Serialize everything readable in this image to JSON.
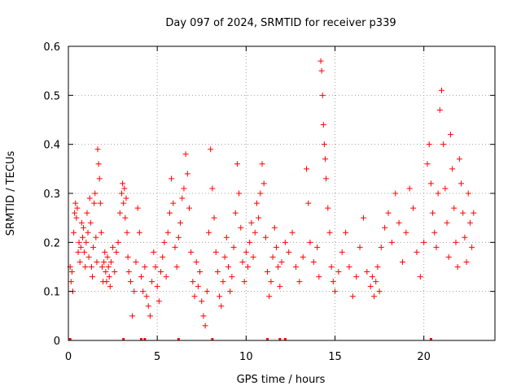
{
  "chart_data": {
    "type": "scatter",
    "title": "Day 097 of 2024, SRMTID for receiver p339",
    "xlabel": "GPS time / hours",
    "ylabel": "SRMTID / TECUs",
    "xlim": [
      0,
      24
    ],
    "ylim": [
      0,
      0.6
    ],
    "xticks": [
      0,
      5,
      10,
      15,
      20
    ],
    "yticks": [
      0,
      0.1,
      0.2,
      0.3,
      0.4,
      0.5,
      0.6
    ],
    "xtick_labels": [
      "0",
      "5",
      "10",
      "15",
      "20"
    ],
    "ytick_labels": [
      "0",
      "0.1",
      "0.2",
      "0.3",
      "0.4",
      "0.5",
      "0.6"
    ],
    "grid": true,
    "marker": "+",
    "color": "#ff0000",
    "series": [
      {
        "name": "SRMTID",
        "points": [
          [
            0.1,
            0.15
          ],
          [
            0.15,
            0.12
          ],
          [
            0.2,
            0.14
          ],
          [
            0.25,
            0.1
          ],
          [
            0.3,
            0.22
          ],
          [
            0.35,
            0.26
          ],
          [
            0.4,
            0.28
          ],
          [
            0.45,
            0.25
          ],
          [
            0.5,
            0.27
          ],
          [
            0.55,
            0.18
          ],
          [
            0.6,
            0.2
          ],
          [
            0.65,
            0.16
          ],
          [
            0.7,
            0.19
          ],
          [
            0.75,
            0.24
          ],
          [
            0.8,
            0.21
          ],
          [
            0.85,
            0.23
          ],
          [
            0.9,
            0.18
          ],
          [
            0.95,
            0.15
          ],
          [
            1.0,
            0.2
          ],
          [
            1.05,
            0.26
          ],
          [
            1.1,
            0.22
          ],
          [
            1.15,
            0.17
          ],
          [
            1.2,
            0.29
          ],
          [
            1.25,
            0.24
          ],
          [
            1.3,
            0.15
          ],
          [
            1.35,
            0.13
          ],
          [
            1.4,
            0.19
          ],
          [
            1.45,
            0.28
          ],
          [
            1.5,
            0.3
          ],
          [
            1.55,
            0.21
          ],
          [
            1.6,
            0.16
          ],
          [
            1.65,
            0.39
          ],
          [
            1.7,
            0.36
          ],
          [
            1.75,
            0.33
          ],
          [
            1.8,
            0.28
          ],
          [
            1.85,
            0.22
          ],
          [
            1.9,
            0.15
          ],
          [
            1.95,
            0.12
          ],
          [
            2.0,
            0.16
          ],
          [
            2.05,
            0.18
          ],
          [
            2.1,
            0.14
          ],
          [
            2.15,
            0.12
          ],
          [
            2.2,
            0.17
          ],
          [
            2.25,
            0.15
          ],
          [
            2.3,
            0.13
          ],
          [
            2.35,
            0.11
          ],
          [
            2.4,
            0.16
          ],
          [
            2.5,
            0.19
          ],
          [
            2.6,
            0.14
          ],
          [
            2.7,
            0.18
          ],
          [
            2.8,
            0.2
          ],
          [
            2.9,
            0.26
          ],
          [
            3.0,
            0.3
          ],
          [
            3.05,
            0.32
          ],
          [
            3.1,
            0.28
          ],
          [
            3.15,
            0.31
          ],
          [
            3.2,
            0.25
          ],
          [
            3.25,
            0.29
          ],
          [
            3.3,
            0.22
          ],
          [
            3.35,
            0.17
          ],
          [
            3.4,
            0.14
          ],
          [
            3.5,
            0.12
          ],
          [
            3.6,
            0.05
          ],
          [
            3.7,
            0.1
          ],
          [
            3.8,
            0.16
          ],
          [
            3.9,
            0.27
          ],
          [
            4.0,
            0.22
          ],
          [
            4.1,
            0.13
          ],
          [
            4.2,
            0.1
          ],
          [
            4.3,
            0.15
          ],
          [
            4.4,
            0.09
          ],
          [
            4.5,
            0.07
          ],
          [
            4.6,
            0.05
          ],
          [
            4.7,
            0.12
          ],
          [
            4.8,
            0.18
          ],
          [
            4.9,
            0.15
          ],
          [
            5.0,
            0.11
          ],
          [
            5.1,
            0.08
          ],
          [
            5.2,
            0.14
          ],
          [
            5.3,
            0.17
          ],
          [
            5.4,
            0.2
          ],
          [
            5.5,
            0.13
          ],
          [
            5.6,
            0.22
          ],
          [
            5.7,
            0.26
          ],
          [
            5.8,
            0.33
          ],
          [
            5.9,
            0.28
          ],
          [
            6.0,
            0.19
          ],
          [
            6.1,
            0.15
          ],
          [
            6.2,
            0.21
          ],
          [
            6.3,
            0.24
          ],
          [
            6.4,
            0.29
          ],
          [
            6.5,
            0.31
          ],
          [
            6.6,
            0.38
          ],
          [
            6.7,
            0.34
          ],
          [
            6.8,
            0.27
          ],
          [
            6.9,
            0.18
          ],
          [
            7.0,
            0.12
          ],
          [
            7.1,
            0.09
          ],
          [
            7.2,
            0.16
          ],
          [
            7.3,
            0.11
          ],
          [
            7.4,
            0.14
          ],
          [
            7.5,
            0.08
          ],
          [
            7.6,
            0.05
          ],
          [
            7.7,
            0.03
          ],
          [
            7.8,
            0.1
          ],
          [
            7.9,
            0.22
          ],
          [
            8.0,
            0.39
          ],
          [
            8.1,
            0.31
          ],
          [
            8.2,
            0.25
          ],
          [
            8.3,
            0.18
          ],
          [
            8.4,
            0.14
          ],
          [
            8.5,
            0.09
          ],
          [
            8.6,
            0.07
          ],
          [
            8.7,
            0.12
          ],
          [
            8.8,
            0.17
          ],
          [
            8.9,
            0.21
          ],
          [
            9.0,
            0.15
          ],
          [
            9.1,
            0.1
          ],
          [
            9.2,
            0.13
          ],
          [
            9.3,
            0.19
          ],
          [
            9.4,
            0.26
          ],
          [
            9.5,
            0.36
          ],
          [
            9.6,
            0.3
          ],
          [
            9.7,
            0.23
          ],
          [
            9.8,
            0.16
          ],
          [
            9.9,
            0.12
          ],
          [
            10.0,
            0.18
          ],
          [
            10.1,
            0.15
          ],
          [
            10.2,
            0.2
          ],
          [
            10.3,
            0.24
          ],
          [
            10.4,
            0.17
          ],
          [
            10.5,
            0.22
          ],
          [
            10.6,
            0.28
          ],
          [
            10.7,
            0.25
          ],
          [
            10.8,
            0.3
          ],
          [
            10.9,
            0.36
          ],
          [
            11.0,
            0.32
          ],
          [
            11.1,
            0.21
          ],
          [
            11.2,
            0.14
          ],
          [
            11.3,
            0.09
          ],
          [
            11.4,
            0.12
          ],
          [
            11.5,
            0.17
          ],
          [
            11.6,
            0.23
          ],
          [
            11.7,
            0.19
          ],
          [
            11.8,
            0.15
          ],
          [
            11.9,
            0.11
          ],
          [
            12.0,
            0.16
          ],
          [
            12.2,
            0.2
          ],
          [
            12.4,
            0.18
          ],
          [
            12.6,
            0.22
          ],
          [
            12.8,
            0.15
          ],
          [
            13.0,
            0.12
          ],
          [
            13.2,
            0.17
          ],
          [
            13.4,
            0.35
          ],
          [
            13.5,
            0.28
          ],
          [
            13.6,
            0.2
          ],
          [
            13.8,
            0.16
          ],
          [
            14.0,
            0.19
          ],
          [
            14.1,
            0.13
          ],
          [
            14.2,
            0.57
          ],
          [
            14.25,
            0.55
          ],
          [
            14.3,
            0.5
          ],
          [
            14.35,
            0.44
          ],
          [
            14.4,
            0.4
          ],
          [
            14.45,
            0.37
          ],
          [
            14.5,
            0.33
          ],
          [
            14.6,
            0.27
          ],
          [
            14.7,
            0.22
          ],
          [
            14.8,
            0.15
          ],
          [
            14.9,
            0.12
          ],
          [
            15.0,
            0.1
          ],
          [
            15.2,
            0.14
          ],
          [
            15.4,
            0.18
          ],
          [
            15.6,
            0.22
          ],
          [
            15.8,
            0.15
          ],
          [
            16.0,
            0.09
          ],
          [
            16.2,
            0.13
          ],
          [
            16.4,
            0.19
          ],
          [
            16.6,
            0.25
          ],
          [
            16.8,
            0.14
          ],
          [
            17.0,
            0.11
          ],
          [
            17.1,
            0.13
          ],
          [
            17.2,
            0.09
          ],
          [
            17.3,
            0.12
          ],
          [
            17.4,
            0.15
          ],
          [
            17.5,
            0.1
          ],
          [
            17.6,
            0.19
          ],
          [
            17.8,
            0.23
          ],
          [
            18.0,
            0.26
          ],
          [
            18.2,
            0.2
          ],
          [
            18.4,
            0.3
          ],
          [
            18.6,
            0.24
          ],
          [
            18.8,
            0.16
          ],
          [
            19.0,
            0.22
          ],
          [
            19.2,
            0.31
          ],
          [
            19.4,
            0.27
          ],
          [
            19.6,
            0.18
          ],
          [
            19.8,
            0.13
          ],
          [
            20.0,
            0.2
          ],
          [
            20.2,
            0.36
          ],
          [
            20.3,
            0.4
          ],
          [
            20.4,
            0.32
          ],
          [
            20.5,
            0.26
          ],
          [
            20.6,
            0.22
          ],
          [
            20.7,
            0.19
          ],
          [
            20.8,
            0.3
          ],
          [
            20.9,
            0.47
          ],
          [
            21.0,
            0.51
          ],
          [
            21.1,
            0.4
          ],
          [
            21.2,
            0.31
          ],
          [
            21.3,
            0.24
          ],
          [
            21.4,
            0.17
          ],
          [
            21.5,
            0.42
          ],
          [
            21.6,
            0.35
          ],
          [
            21.7,
            0.27
          ],
          [
            21.8,
            0.2
          ],
          [
            21.9,
            0.15
          ],
          [
            22.0,
            0.37
          ],
          [
            22.1,
            0.32
          ],
          [
            22.2,
            0.26
          ],
          [
            22.3,
            0.21
          ],
          [
            22.4,
            0.16
          ],
          [
            22.5,
            0.3
          ],
          [
            22.6,
            0.24
          ],
          [
            22.7,
            0.19
          ],
          [
            22.8,
            0.26
          ]
        ]
      }
    ],
    "baseline_ticks": [
      0.1,
      3.1,
      4.1,
      4.3,
      6.2,
      8.1,
      11.2,
      11.9,
      12.2,
      20.4
    ]
  }
}
